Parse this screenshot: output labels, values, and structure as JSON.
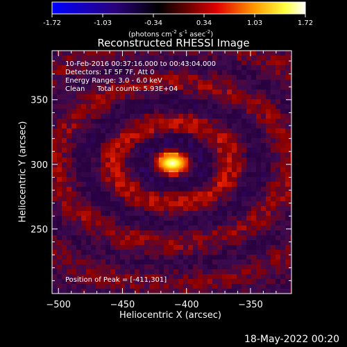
{
  "colorbar": {
    "ticks": [
      "-1.72",
      "-1.03",
      "-0.34",
      "0.34",
      "1.03",
      "1.72"
    ],
    "unit_label": "(photons cm",
    "unit_sup1": "-2",
    "unit_mid1": " s",
    "unit_sup2": "-1",
    "unit_mid2": " asec",
    "unit_sup3": "-2",
    "unit_end": ")"
  },
  "chart_data": {
    "type": "heatmap",
    "title": "Reconstructed RHESSI Image",
    "xlabel": "Heliocentric X (arcsec)",
    "ylabel": "Heliocentric Y (arcsec)",
    "xlim": [
      -505,
      -318
    ],
    "ylim": [
      200,
      388
    ],
    "xticks": [
      -500,
      -450,
      -400,
      -350
    ],
    "yticks": [
      250,
      300,
      350
    ],
    "color_range": [
      -1.72,
      1.72
    ],
    "colormap": [
      "#0000ff",
      "#000000",
      "#ff0000",
      "#ffff00",
      "#ffffff"
    ],
    "peak": [
      -411,
      301
    ],
    "annotations": {
      "time_range": "10-Feb-2016 00:37:16.000 to 00:43:04.000",
      "detectors": "Detectors: 1F 5F 7F, Att 0",
      "energy": "Energy Range: 3.0 - 6.0 keV",
      "method": "Clean",
      "counts": "Total counts: 5.93E+04",
      "peak_text": "Position of Peak = [-411,301]"
    }
  },
  "footer": {
    "date": "18-May-2022 00:20"
  }
}
